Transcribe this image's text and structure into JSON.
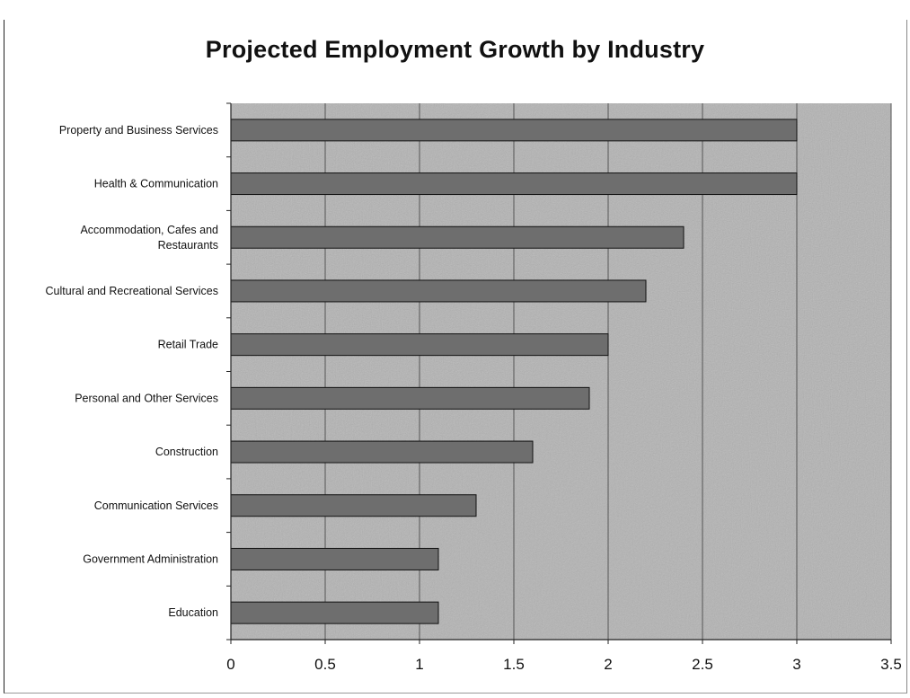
{
  "chart_data": {
    "type": "bar",
    "orientation": "horizontal",
    "title": "Projected Employment Growth by Industry",
    "xlabel": "",
    "ylabel": "",
    "categories": [
      "Property and Business Services",
      "Health & Communication",
      "Accommodation, Cafes and Restaurants",
      "Cultural and Recreational Services",
      "Retail Trade",
      "Personal and Other Services",
      "Construction",
      "Communication Services",
      "Government Administration",
      "Education"
    ],
    "category_label_lines": [
      [
        "Property and Business Services"
      ],
      [
        "Health & Communication"
      ],
      [
        "Accommodation, Cafes and",
        "Restaurants"
      ],
      [
        "Cultural and Recreational Services"
      ],
      [
        "Retail Trade"
      ],
      [
        "Personal and Other Services"
      ],
      [
        "Construction"
      ],
      [
        "Communication Services"
      ],
      [
        "Government Administration"
      ],
      [
        "Education"
      ]
    ],
    "values": [
      3.0,
      3.0,
      2.4,
      2.2,
      2.0,
      1.9,
      1.6,
      1.3,
      1.1,
      1.1
    ],
    "xlim": [
      0,
      3.5
    ],
    "x_ticks": [
      "0",
      "0.5",
      "1",
      "1.5",
      "2",
      "2.5",
      "3",
      "3.5"
    ],
    "grid": true,
    "legend": "none",
    "colors": {
      "plot_background": "#b3b3b3",
      "bar_fill": "#6e6e6e",
      "bar_stroke": "#111111",
      "gridline": "#555555"
    }
  }
}
